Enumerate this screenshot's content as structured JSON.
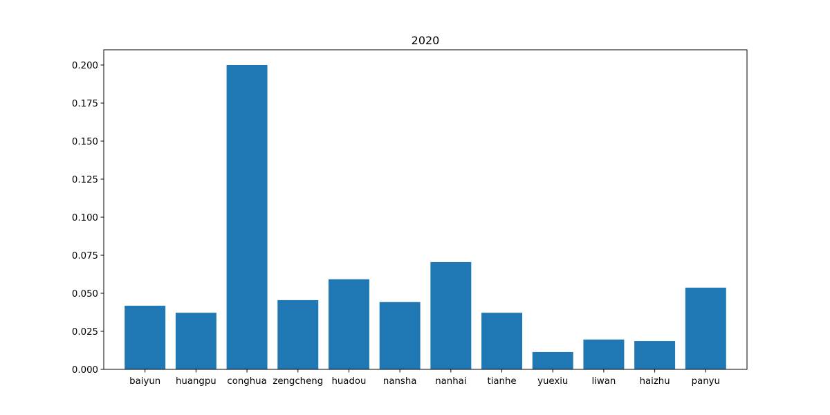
{
  "chart_data": {
    "type": "bar",
    "title": "2020",
    "xlabel": "",
    "ylabel": "",
    "categories": [
      "baiyun",
      "huangpu",
      "conghua",
      "zengcheng",
      "huadou",
      "nansha",
      "nanhai",
      "tianhe",
      "yuexiu",
      "liwan",
      "haizhu",
      "panyu"
    ],
    "values": [
      0.0418,
      0.0372,
      0.2,
      0.0455,
      0.0592,
      0.0442,
      0.0705,
      0.0372,
      0.0114,
      0.0196,
      0.0186,
      0.0537
    ],
    "ylim": [
      0,
      0.21
    ],
    "yticks": [
      0.0,
      0.025,
      0.05,
      0.075,
      0.1,
      0.125,
      0.15,
      0.175,
      0.2
    ],
    "ytick_labels": [
      "0.000",
      "0.025",
      "0.050",
      "0.075",
      "0.100",
      "0.125",
      "0.150",
      "0.175",
      "0.200"
    ],
    "bar_color": "#1f77b4",
    "grid": false,
    "legend": "none"
  }
}
